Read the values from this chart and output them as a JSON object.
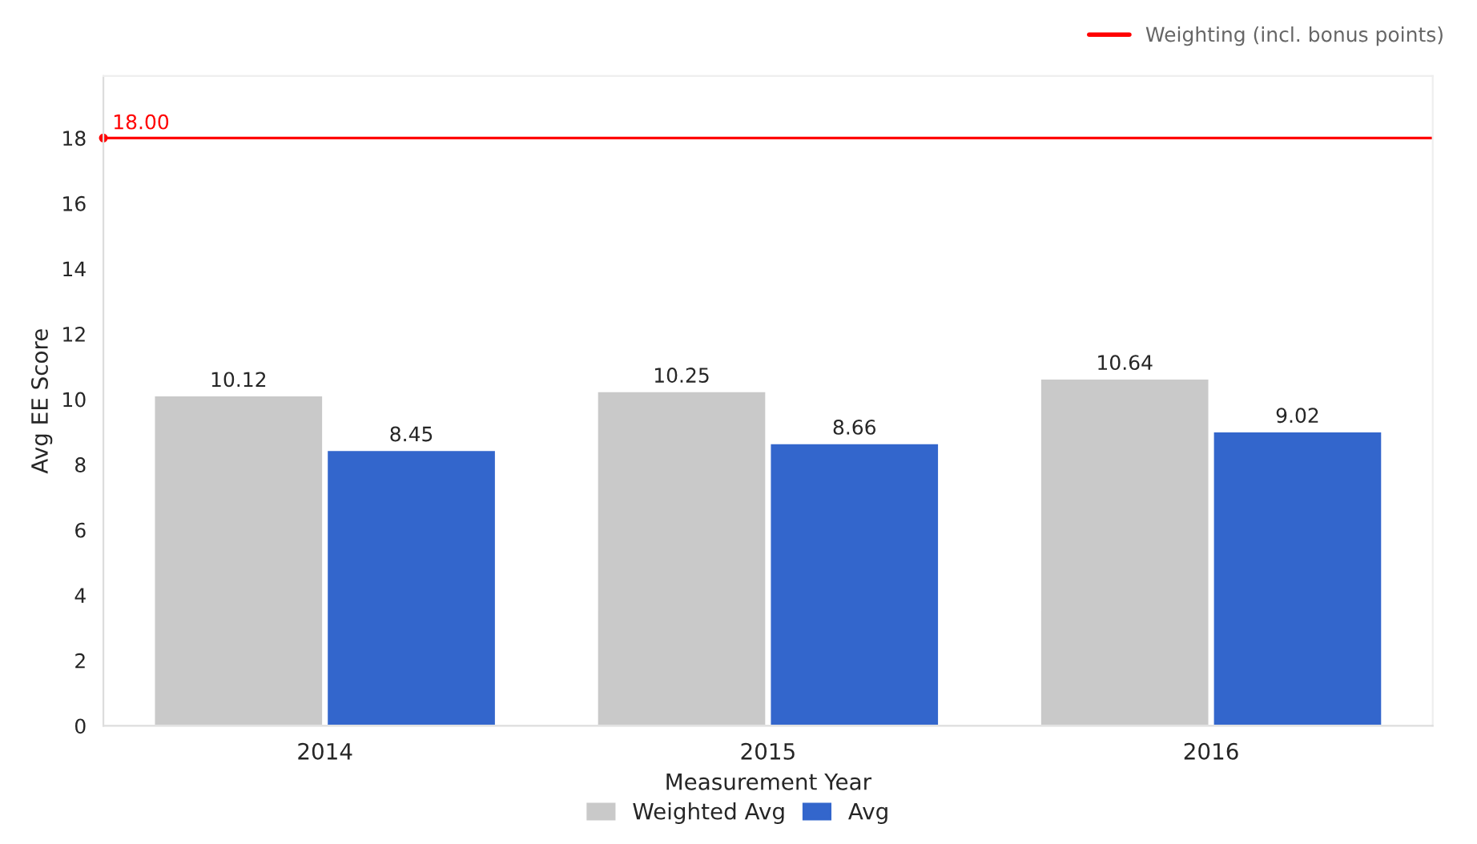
{
  "chart_data": {
    "type": "bar",
    "xlabel": "Measurement Year",
    "ylabel": "Avg EE Score",
    "categories": [
      "2014",
      "2015",
      "2016"
    ],
    "series": [
      {
        "name": "Weighted Avg",
        "color": "#c9c9c9",
        "values": [
          10.12,
          10.25,
          10.64
        ]
      },
      {
        "name": "Avg",
        "color": "#3366cc",
        "values": [
          8.45,
          8.66,
          9.02
        ]
      }
    ],
    "data_labels": true,
    "ylim": [
      0,
      19.9
    ],
    "yticks": [
      0,
      2,
      4,
      6,
      8,
      10,
      12,
      14,
      16,
      18
    ],
    "ref_lines": [
      {
        "axis": "y",
        "value": 18,
        "label": "Weighting (incl. bonus points)",
        "color": "#ff0000",
        "line_style": "solid"
      }
    ],
    "annotations": [
      {
        "text": "18.00",
        "y": 18
      }
    ],
    "grid": false,
    "legend": "bottom"
  }
}
